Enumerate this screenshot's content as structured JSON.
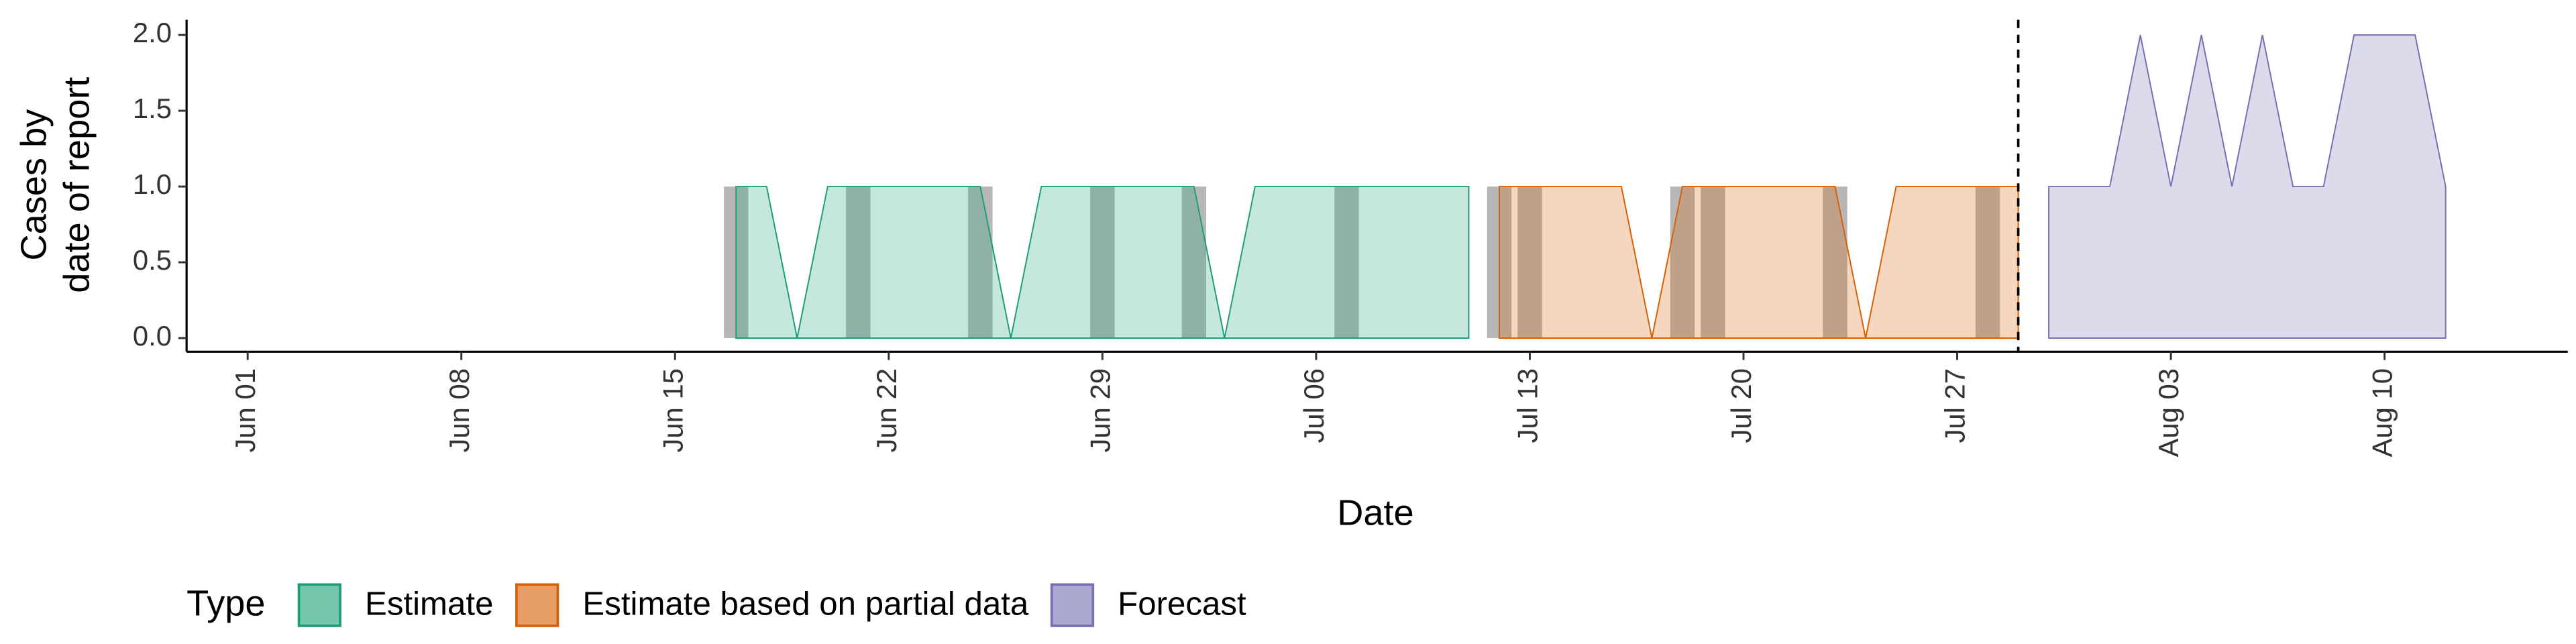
{
  "chart_data": {
    "type": "area",
    "xlabel": "Date",
    "ylabel": [
      "Cases by",
      "date of report"
    ],
    "legend_title": "Type",
    "legend_position": "bottom",
    "xlim": [
      "May 30",
      "Aug 16"
    ],
    "xticks": [
      "Jun 01",
      "Jun 08",
      "Jun 15",
      "Jun 22",
      "Jun 29",
      "Jul 06",
      "Jul 13",
      "Jul 20",
      "Jul 27",
      "Aug 03",
      "Aug 10"
    ],
    "ylim": [
      -0.09,
      2.1
    ],
    "yticks": [
      {
        "value": 0,
        "label": "0.0"
      },
      {
        "value": 0.5,
        "label": "0.5"
      },
      {
        "value": 1,
        "label": "1.0"
      },
      {
        "value": 1.5,
        "label": "1.5"
      },
      {
        "value": 2,
        "label": "2.0"
      }
    ],
    "vline": "Jul 29",
    "observed": {
      "color": "#999999",
      "x": [
        "Jun 17",
        "Jun 21",
        "Jun 25",
        "Jun 29",
        "Jul 02",
        "Jul 07",
        "Jul 12",
        "Jul 13",
        "Jul 18",
        "Jul 19",
        "Jul 23",
        "Jul 28"
      ],
      "values": [
        1,
        1,
        1,
        1,
        1,
        1,
        1,
        1,
        1,
        1,
        1,
        1
      ]
    },
    "series": [
      {
        "name": "Estimate",
        "color": "#1b9e77",
        "x": [
          "Jun 17",
          "Jun 18",
          "Jun 19",
          "Jun 20",
          "Jun 21",
          "Jun 22",
          "Jun 23",
          "Jun 24",
          "Jun 25",
          "Jun 26",
          "Jun 27",
          "Jun 28",
          "Jun 29",
          "Jun 30",
          "Jul 01",
          "Jul 02",
          "Jul 03",
          "Jul 04",
          "Jul 05",
          "Jul 06",
          "Jul 07",
          "Jul 08",
          "Jul 09",
          "Jul 10",
          "Jul 11"
        ],
        "values": [
          1,
          1,
          0,
          1,
          1,
          1,
          1,
          1,
          1,
          0,
          1,
          1,
          1,
          1,
          1,
          1,
          0,
          1,
          1,
          1,
          1,
          1,
          1,
          1,
          1
        ]
      },
      {
        "name": "Estimate based on partial data",
        "color": "#d95f02",
        "x": [
          "Jul 12",
          "Jul 13",
          "Jul 14",
          "Jul 15",
          "Jul 16",
          "Jul 17",
          "Jul 18",
          "Jul 19",
          "Jul 20",
          "Jul 21",
          "Jul 22",
          "Jul 23",
          "Jul 24",
          "Jul 25",
          "Jul 26",
          "Jul 27",
          "Jul 28",
          "Jul 29"
        ],
        "values": [
          1,
          1,
          1,
          1,
          1,
          0,
          1,
          1,
          1,
          1,
          1,
          1,
          0,
          1,
          1,
          1,
          1,
          1
        ]
      },
      {
        "name": "Forecast",
        "color": "#7570b3",
        "x": [
          "Jul 30",
          "Jul 31",
          "Aug 01",
          "Aug 02",
          "Aug 03",
          "Aug 04",
          "Aug 05",
          "Aug 06",
          "Aug 07",
          "Aug 08",
          "Aug 09",
          "Aug 10",
          "Aug 11",
          "Aug 12"
        ],
        "values": [
          1,
          1,
          1,
          2,
          1,
          2,
          1,
          2,
          1,
          1,
          2,
          2,
          2,
          1
        ]
      }
    ]
  }
}
